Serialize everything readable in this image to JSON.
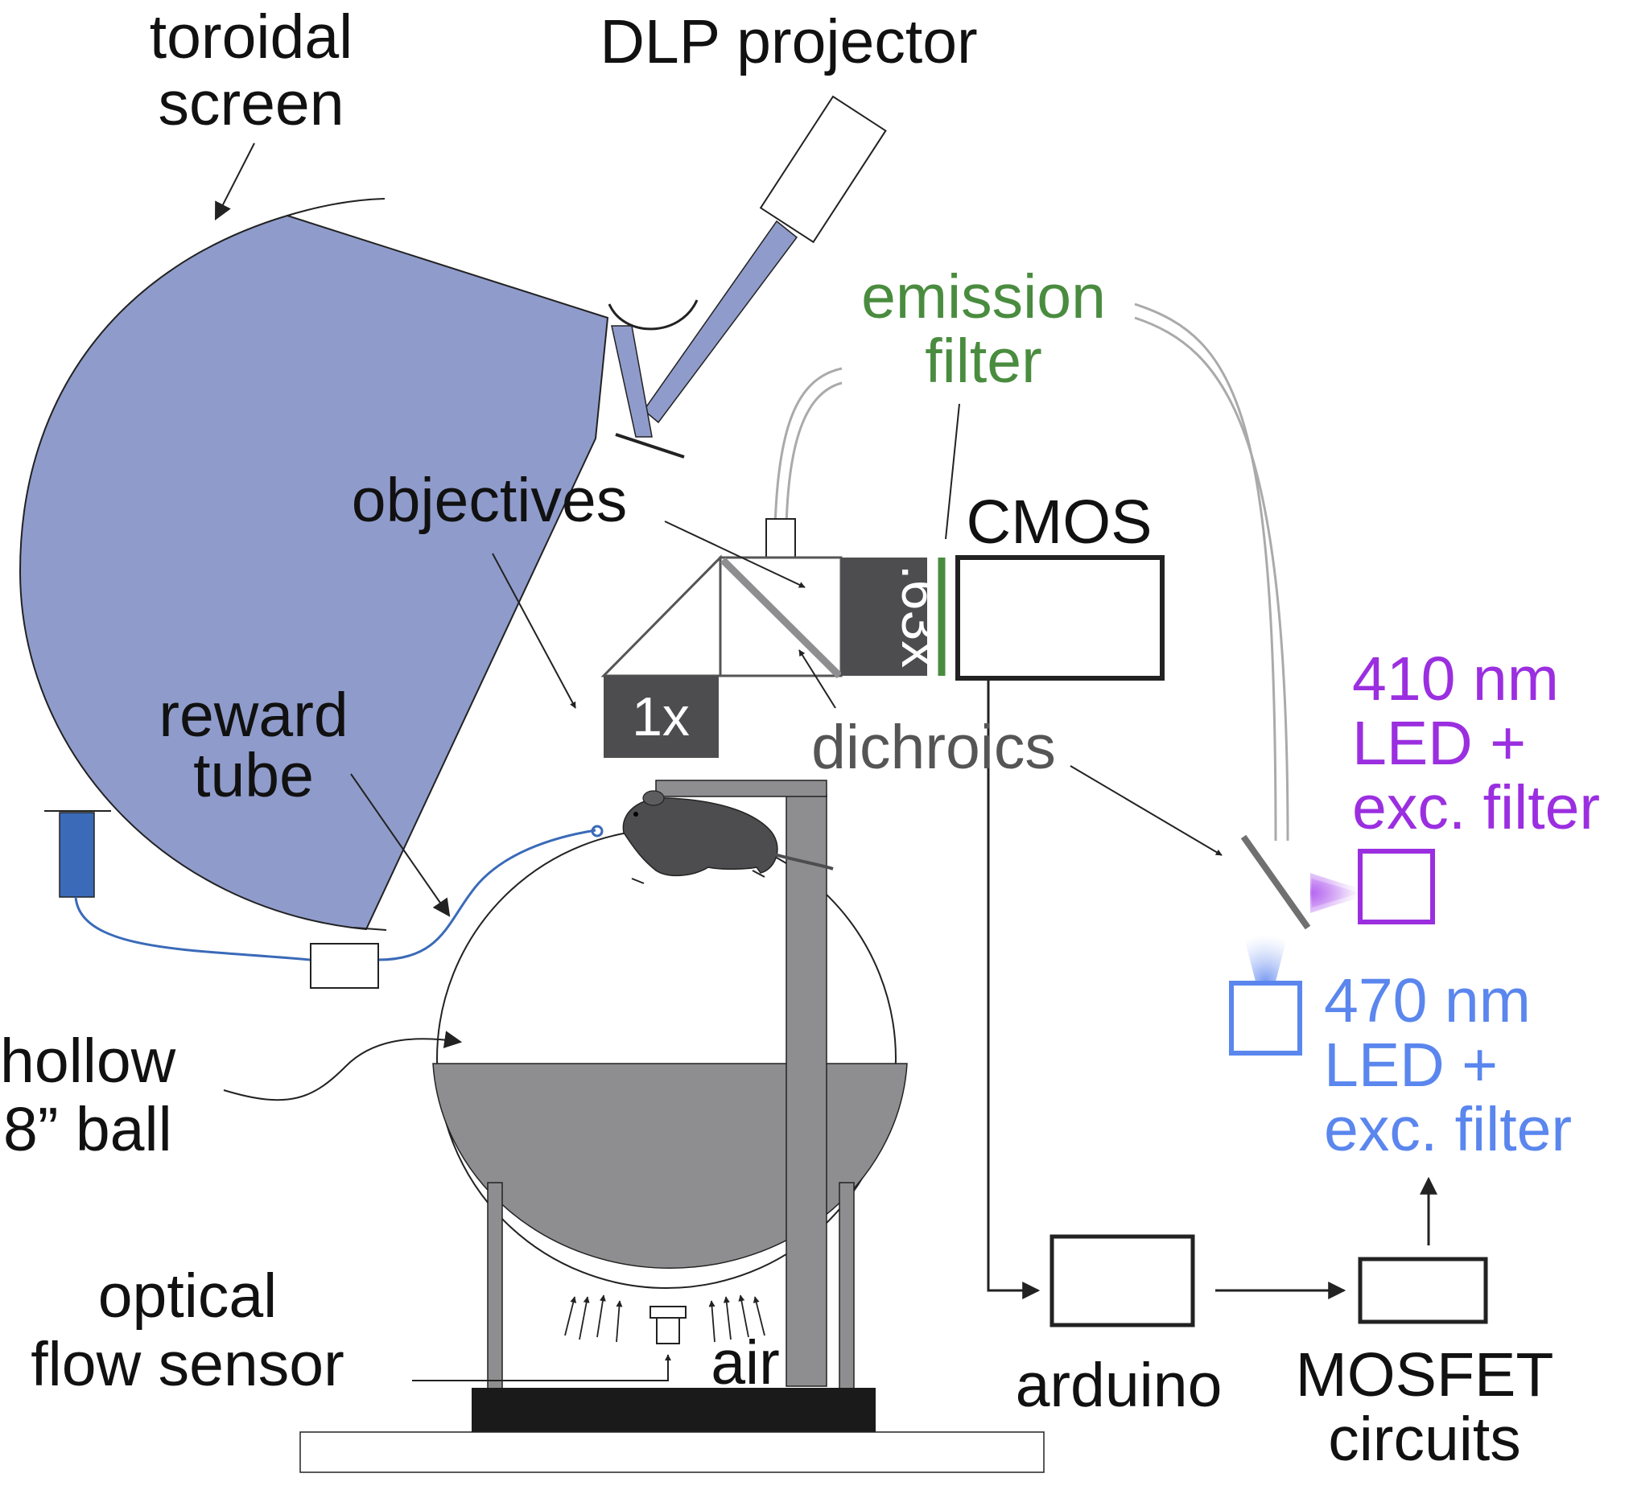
{
  "labels": {
    "toroidal_screen": [
      "toroidal",
      "screen"
    ],
    "dlp_projector": "DLP projector",
    "emission_filter": [
      "emission",
      "filter"
    ],
    "objectives": "objectives",
    "cmos": "CMOS",
    "reward_tube": [
      "reward",
      "tube"
    ],
    "dichroics": "dichroics",
    "led_410": [
      "410 nm",
      "LED +",
      "exc. filter"
    ],
    "led_470": [
      "470 nm",
      "LED +",
      "exc. filter"
    ],
    "hollow_ball": [
      "hollow",
      "8” ball"
    ],
    "optical_flow_sensor": [
      "optical",
      "flow sensor"
    ],
    "air": "air",
    "arduino": "arduino",
    "mosfet": [
      "MOSFET",
      "circuits"
    ],
    "lens_1x": "1x",
    "lens_063x": ".63x"
  },
  "colors": {
    "screen_fill": "#8f9ccb",
    "emission_green": "#4a8c3f",
    "led_410_purple": "#9b2fe0",
    "led_470_blue": "#5a86ee",
    "reward_tube_blue": "#3a6ab8",
    "stand_gray": "#8e8e90",
    "lens_dark": "#4d4d4f"
  }
}
